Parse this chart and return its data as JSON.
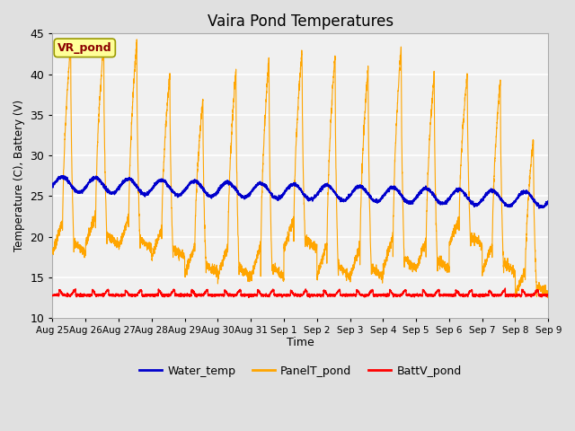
{
  "title": "Vaira Pond Temperatures",
  "ylabel": "Temperature (C), Battery (V)",
  "xlabel": "Time",
  "ylim": [
    10,
    45
  ],
  "annotation_text": "VR_pond",
  "annotation_color": "#8B0000",
  "annotation_bg": "#FFFF99",
  "annotation_border": "#999900",
  "water_color": "#0000CC",
  "panel_color": "#FFA500",
  "batt_color": "#FF0000",
  "legend_labels": [
    "Water_temp",
    "PanelT_pond",
    "BattV_pond"
  ],
  "bg_color": "#E0E0E0",
  "plot_bg": "#F0F0F0",
  "grid_color": "#FFFFFF",
  "tick_labels": [
    "Aug 25",
    "Aug 26",
    "Aug 27",
    "Aug 28",
    "Aug 29",
    "Aug 30",
    "Aug 31",
    "Sep 1",
    "Sep 2",
    "Sep 3",
    "Sep 4",
    "Sep 5",
    "Sep 6",
    "Sep 7",
    "Sep 8",
    "Sep 9"
  ],
  "tick_positions": [
    0,
    1,
    2,
    3,
    4,
    5,
    6,
    7,
    8,
    9,
    10,
    11,
    12,
    13,
    14,
    15
  ],
  "yticks": [
    10,
    15,
    20,
    25,
    30,
    35,
    40,
    45
  ]
}
